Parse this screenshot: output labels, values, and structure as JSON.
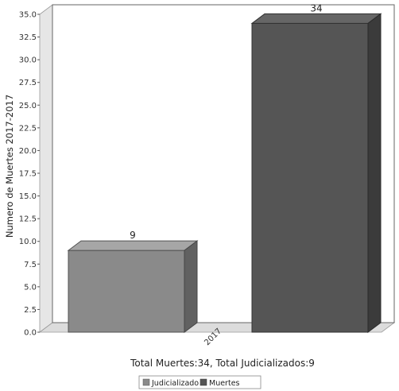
{
  "chart_data": {
    "type": "bar",
    "categories": [
      "2017"
    ],
    "series": [
      {
        "name": "Judicializado",
        "values": [
          9
        ],
        "color": "#8a8a8a"
      },
      {
        "name": "Muertes",
        "values": [
          34
        ],
        "color": "#555555"
      }
    ],
    "ylabel": "Numero de Muertes 2017-2017",
    "xlabel": "Total Muertes:34, Total Judicializados:9",
    "yticks": [
      "0.0",
      "2.5",
      "5.0",
      "7.5",
      "10.0",
      "12.5",
      "15.0",
      "17.5",
      "20.0",
      "22.5",
      "25.0",
      "27.5",
      "30.0",
      "32.5",
      "35.0"
    ],
    "ylim": [
      0,
      35
    ],
    "legend_position": "bottom",
    "grid": false,
    "style": "3d-bar"
  }
}
